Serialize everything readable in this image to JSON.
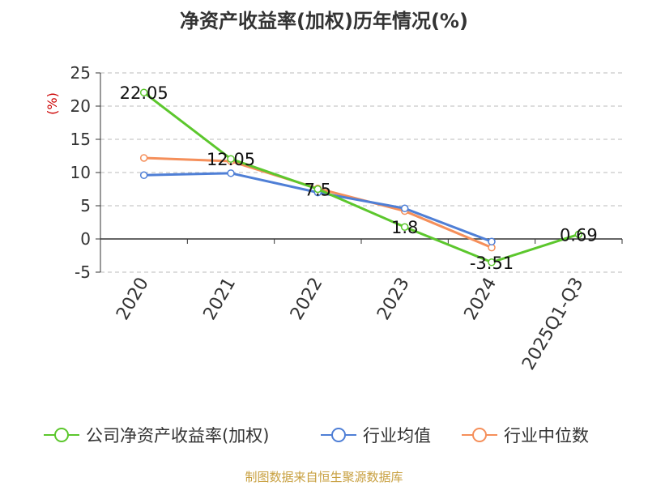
{
  "title": "净资产收益率(加权)历年情况(%)",
  "source": "制图数据来自恒生聚源数据库",
  "chart_data": {
    "type": "line",
    "title": "净资产收益率(加权)历年情况(%)",
    "ylabel": "(%)",
    "xlabel": "",
    "categories": [
      "2020",
      "2021",
      "2022",
      "2023",
      "2024",
      "2025Q1-Q3"
    ],
    "ylim": [
      -5,
      25
    ],
    "yticks": [
      -5,
      0,
      5,
      10,
      15,
      20,
      25
    ],
    "grid": true,
    "legend_position": "bottom",
    "series": [
      {
        "name": "公司净资产收益率(加权)",
        "color": "#5cc72d",
        "values": [
          22.05,
          12.05,
          7.5,
          1.8,
          -3.51,
          0.69
        ],
        "labels": [
          "22.05",
          "12.05",
          "7.5",
          "1.8",
          "-3.51",
          "0.69"
        ]
      },
      {
        "name": "行业均值",
        "color": "#4f7fd6",
        "values": [
          9.6,
          9.9,
          7.0,
          4.6,
          -0.4,
          null
        ]
      },
      {
        "name": "行业中位数",
        "color": "#f58f5a",
        "values": [
          12.2,
          11.7,
          7.6,
          4.2,
          -1.3,
          null
        ]
      }
    ]
  }
}
